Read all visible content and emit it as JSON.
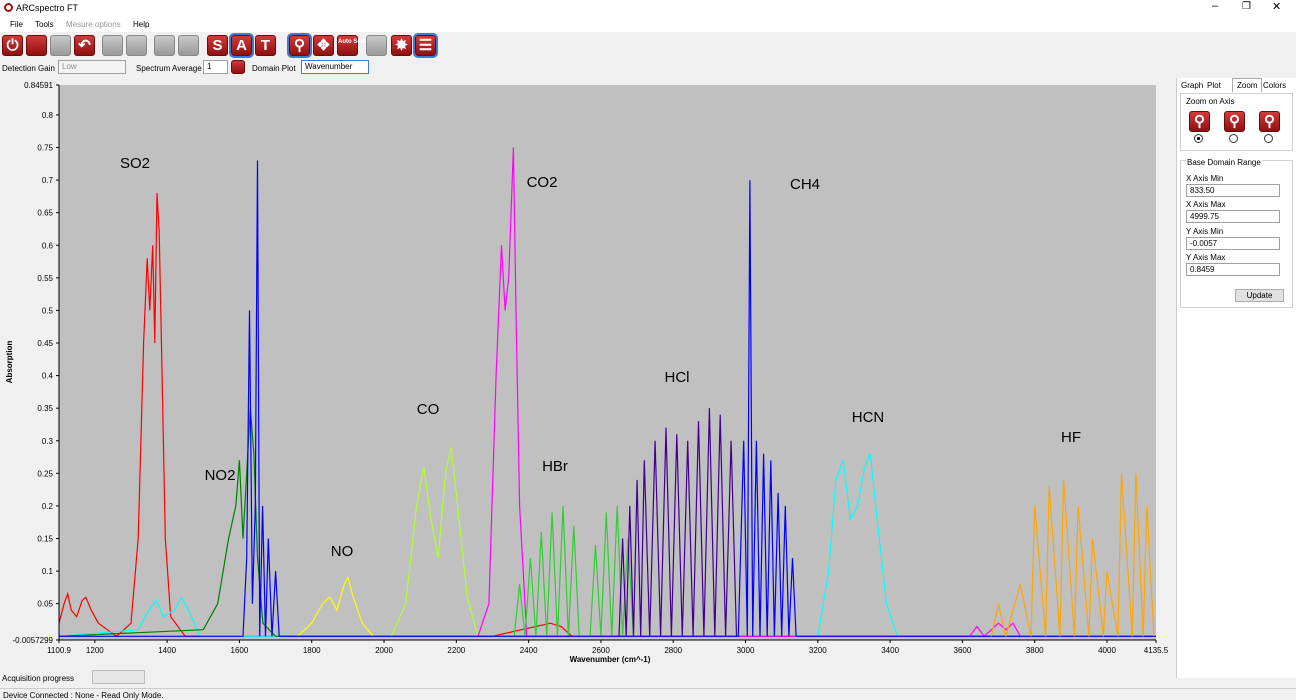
{
  "window": {
    "title": "ARCspectro FT"
  },
  "menu": [
    "File",
    "Tools",
    "Mesure options",
    "Help"
  ],
  "toolbar": {
    "letters": [
      "S",
      "A",
      "T"
    ],
    "auto_scale": "Auto Scale"
  },
  "options": {
    "detection_gain_label": "Detection Gain",
    "detection_gain": "Low",
    "spectrum_average_label": "Spectrum Average",
    "spectrum_average": "1",
    "domain_plot_label": "Domain Plot",
    "domain_plot": "Wavenumber"
  },
  "chart_data": {
    "type": "line",
    "x_label": "Wavenumber (cm^-1)",
    "y_label": "Absorption",
    "annotations": [
      "SO2",
      "CO2",
      "CH4",
      "NO2",
      "CO",
      "HBr",
      "HCl",
      "HCN",
      "HF",
      "NO"
    ],
    "xlim": [
      1100.9,
      4135.5
    ],
    "xticks": [
      1100.9,
      1200,
      1400,
      1600,
      1800,
      2000,
      2200,
      2400,
      2600,
      2800,
      3000,
      3200,
      3400,
      3600,
      3800,
      4000,
      4135.5
    ],
    "ylim": [
      -0.0057299,
      0.84591
    ],
    "yticks": [
      -0.0057299,
      0.05,
      0.1,
      0.15,
      0.2,
      0.25,
      0.3,
      0.35,
      0.4,
      0.45,
      0.5,
      0.55,
      0.6,
      0.65,
      0.7,
      0.75,
      0.8,
      0.84591
    ],
    "series": [
      {
        "color": "#ff0000",
        "x": [
          1100.9,
          1115,
          1125,
          1135,
          1150,
          1165,
          1175,
          1190,
          1210,
          1260,
          1300,
          1320,
          1335,
          1345,
          1352,
          1360,
          1366,
          1372,
          1378,
          1386,
          1395,
          1410,
          1450,
          2300,
          2380,
          2420,
          2460,
          2490,
          2520,
          4135.5
        ],
        "values": [
          0.02,
          0.05,
          0.065,
          0.04,
          0.03,
          0.055,
          0.06,
          0.04,
          0.02,
          0,
          0.02,
          0.15,
          0.45,
          0.58,
          0.5,
          0.6,
          0.45,
          0.68,
          0.62,
          0.4,
          0.15,
          0.03,
          0,
          0,
          0.01,
          0.015,
          0.02,
          0.015,
          0,
          0
        ]
      },
      {
        "color": "#00ffff",
        "x": [
          1100.9,
          1320,
          1350,
          1370,
          1390,
          1420,
          1440,
          1460,
          1490,
          3200,
          3230,
          3250,
          3270,
          3290,
          3310,
          3330,
          3345,
          3360,
          3390,
          3420,
          4135.5
        ],
        "values": [
          0,
          0.01,
          0.04,
          0.055,
          0.03,
          0.04,
          0.06,
          0.04,
          0,
          0,
          0.1,
          0.24,
          0.27,
          0.18,
          0.2,
          0.26,
          0.28,
          0.2,
          0.05,
          0,
          0
        ]
      },
      {
        "color": "#008000",
        "x": [
          1100.9,
          1500,
          1540,
          1570,
          1590,
          1600,
          1610,
          1620,
          1630,
          1640,
          1650,
          1665,
          1700,
          4135.5
        ],
        "values": [
          0,
          0.01,
          0.05,
          0.15,
          0.2,
          0.27,
          0.15,
          0.25,
          0.35,
          0.28,
          0.12,
          0.02,
          0,
          0
        ]
      },
      {
        "color": "#ffff00",
        "x": [
          1760,
          1800,
          1830,
          1850,
          1870,
          1890,
          1900,
          1915,
          1940,
          1970
        ],
        "values": [
          0,
          0.02,
          0.05,
          0.06,
          0.04,
          0.08,
          0.09,
          0.06,
          0.02,
          0
        ]
      },
      {
        "color": "#b0ff30",
        "x": [
          2020,
          2060,
          2090,
          2110,
          2130,
          2150,
          2170,
          2185,
          2200,
          2230,
          2260
        ],
        "values": [
          0,
          0.05,
          0.2,
          0.26,
          0.18,
          0.12,
          0.25,
          0.29,
          0.22,
          0.06,
          0
        ]
      },
      {
        "color": "#ff00ff",
        "x": [
          2260,
          2290,
          2310,
          2325,
          2335,
          2345,
          2352,
          2358,
          2365,
          2375,
          2395,
          3620,
          3640,
          3660,
          3700,
          3720,
          3740,
          3760
        ],
        "values": [
          0,
          0.05,
          0.4,
          0.6,
          0.5,
          0.55,
          0.66,
          0.75,
          0.5,
          0.2,
          0,
          0,
          0.015,
          0,
          0.02,
          0.01,
          0.02,
          0
        ]
      },
      {
        "color": "#33cc33",
        "x": [
          2360,
          2375,
          2390,
          2405,
          2420,
          2435,
          2450,
          2465,
          2480,
          2495,
          2510,
          2525,
          2540,
          2570,
          2585,
          2600,
          2615,
          2630,
          2645,
          2660,
          2675,
          2690,
          2700
        ],
        "values": [
          0,
          0.08,
          0,
          0.12,
          0,
          0.16,
          0,
          0.19,
          0,
          0.2,
          0,
          0.17,
          0,
          0,
          0.14,
          0,
          0.19,
          0,
          0.2,
          0,
          0.15,
          0,
          0
        ]
      },
      {
        "color": "#400090",
        "x": [
          2650,
          2660,
          2670,
          2680,
          2690,
          2700,
          2710,
          2720,
          2735,
          2750,
          2765,
          2780,
          2795,
          2810,
          2825,
          2840,
          2855,
          2870,
          2885,
          2900,
          2915,
          2930,
          2945,
          2960,
          2975
        ],
        "values": [
          0,
          0.15,
          0,
          0.2,
          0,
          0.24,
          0,
          0.27,
          0,
          0.3,
          0,
          0.32,
          0,
          0.31,
          0,
          0.3,
          0,
          0.33,
          0,
          0.35,
          0,
          0.34,
          0,
          0.3,
          0
        ]
      },
      {
        "color": "#0000ff",
        "x": [
          1100.9,
          1610,
          1620,
          1628,
          1636,
          1644,
          1650,
          1656,
          1664,
          1672,
          1680,
          1690,
          1700,
          1710,
          2980,
          2995,
          3005,
          3012,
          3020,
          3030,
          3040,
          3050,
          3060,
          3070,
          3080,
          3090,
          3100,
          3110,
          3120,
          3130,
          3140,
          4135.5
        ],
        "values": [
          0,
          0,
          0.12,
          0.5,
          0.05,
          0.2,
          0.73,
          0,
          0.2,
          0,
          0.15,
          0,
          0.1,
          0,
          0,
          0.3,
          0,
          0.7,
          0,
          0.3,
          0,
          0.28,
          0,
          0.27,
          0,
          0.22,
          0,
          0.2,
          0,
          0.12,
          0,
          0
        ]
      },
      {
        "color": "#ffa500",
        "x": [
          3680,
          3700,
          3720,
          3760,
          3790,
          3800,
          3830,
          3840,
          3870,
          3880,
          3910,
          3920,
          3950,
          3960,
          3990,
          4000,
          4030,
          4040,
          4070,
          4080,
          4100,
          4110,
          4130
        ],
        "values": [
          0,
          0.05,
          0,
          0.08,
          0,
          0.2,
          0,
          0.23,
          0,
          0.24,
          0,
          0.2,
          0,
          0.15,
          0,
          0.1,
          0,
          0.25,
          0,
          0.25,
          0,
          0.2,
          0
        ]
      }
    ]
  },
  "side_panel": {
    "tabs": [
      "Graph",
      "Plot",
      "Zoom",
      "Colors"
    ],
    "zoom_group": "Zoom on Axis",
    "range_group": "Base Domain Range",
    "fields": [
      {
        "label": "X Axis Min",
        "value": "833.50"
      },
      {
        "label": "X Axis Max",
        "value": "4999.75"
      },
      {
        "label": "Y Axis Min",
        "value": "-0.0057"
      },
      {
        "label": "Y Axis Max",
        "value": "0.8459"
      }
    ],
    "button": "Update"
  },
  "status": {
    "progress_label": "Acquisition progress",
    "message": "Device Connected : None - Read Only Mode."
  }
}
